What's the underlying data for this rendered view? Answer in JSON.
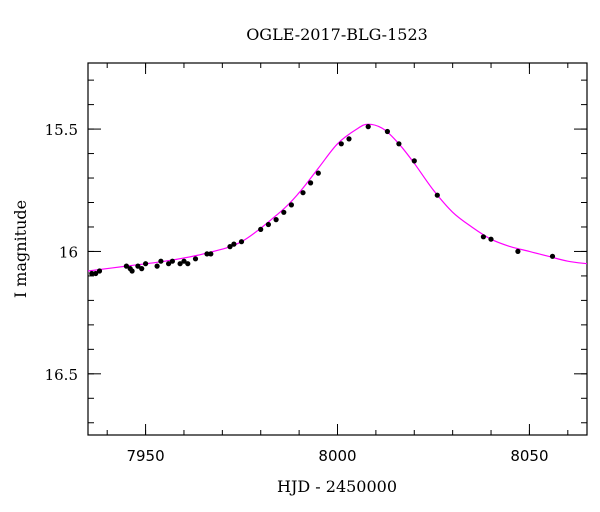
{
  "chart_data": {
    "type": "scatter",
    "title": "OGLE-2017-BLG-1523",
    "xlabel": "HJD - 2450000",
    "ylabel": "I magnitude",
    "xlim": [
      7935,
      8065
    ],
    "ylim": [
      16.75,
      15.23
    ],
    "y_inverted": true,
    "grid": false,
    "x_ticks": [
      7950,
      8000,
      8050
    ],
    "x_tick_labels": [
      "7950",
      "8000",
      "8050"
    ],
    "y_ticks": [
      15.5,
      16,
      16.5
    ],
    "y_tick_labels": [
      "15.5",
      "16",
      "16.5"
    ],
    "series": [
      {
        "type": "scatter",
        "color": "#000000",
        "x": [
          7936,
          7937,
          7938,
          7945,
          7946,
          7946.5,
          7948,
          7949,
          7950,
          7953,
          7954,
          7956,
          7957,
          7959,
          7960,
          7961,
          7963,
          7966,
          7967,
          7972,
          7973,
          7975,
          7980,
          7982,
          7984,
          7986,
          7988,
          7991,
          7993,
          7995,
          8001,
          8003,
          8008,
          8013,
          8016,
          8020,
          8026,
          8038,
          8040,
          8047,
          8056
        ],
        "y": [
          16.09,
          16.09,
          16.08,
          16.06,
          16.07,
          16.08,
          16.06,
          16.07,
          16.05,
          16.06,
          16.04,
          16.05,
          16.04,
          16.05,
          16.04,
          16.05,
          16.03,
          16.01,
          16.01,
          15.98,
          15.97,
          15.96,
          15.91,
          15.89,
          15.87,
          15.84,
          15.81,
          15.76,
          15.72,
          15.68,
          15.56,
          15.54,
          15.49,
          15.51,
          15.56,
          15.63,
          15.77,
          15.94,
          15.95,
          16.0,
          16.02
        ]
      },
      {
        "type": "line",
        "color": "#ff00ff",
        "x": [
          7935,
          7945,
          7955,
          7965,
          7975,
          7985,
          7990,
          7995,
          8000,
          8005,
          8008,
          8012,
          8016,
          8020,
          8025,
          8030,
          8035,
          8040,
          8045,
          8050,
          8055,
          8060,
          8065
        ],
        "y": [
          16.08,
          16.06,
          16.04,
          16.01,
          15.96,
          15.84,
          15.76,
          15.66,
          15.56,
          15.5,
          15.48,
          15.5,
          15.56,
          15.64,
          15.75,
          15.84,
          15.9,
          15.95,
          15.98,
          16.0,
          16.02,
          16.04,
          16.05
        ]
      }
    ]
  }
}
